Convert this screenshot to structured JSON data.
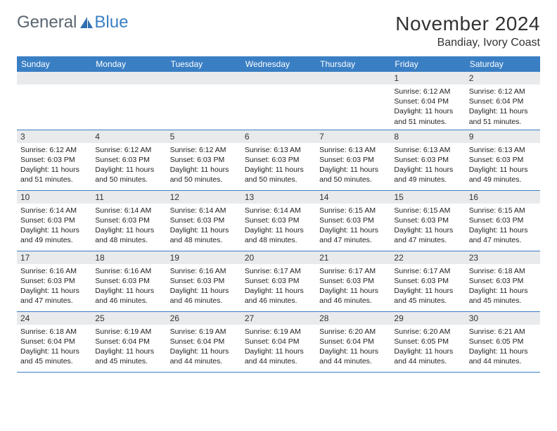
{
  "logo": {
    "word1": "General",
    "word2": "Blue"
  },
  "title": "November 2024",
  "location": "Bandiay, Ivory Coast",
  "columns": [
    "Sunday",
    "Monday",
    "Tuesday",
    "Wednesday",
    "Thursday",
    "Friday",
    "Saturday"
  ],
  "colors": {
    "header_bg": "#3a7fc4",
    "header_text": "#ffffff",
    "bar_bg": "#e8eaec",
    "border": "#3a7fc4",
    "body_text": "#222",
    "logo_gray": "#5a6570",
    "logo_blue": "#3a7fc4"
  },
  "weeks": [
    [
      null,
      null,
      null,
      null,
      null,
      {
        "n": "1",
        "sr": "6:12 AM",
        "ss": "6:04 PM",
        "dl": "11 hours and 51 minutes."
      },
      {
        "n": "2",
        "sr": "6:12 AM",
        "ss": "6:04 PM",
        "dl": "11 hours and 51 minutes."
      }
    ],
    [
      {
        "n": "3",
        "sr": "6:12 AM",
        "ss": "6:03 PM",
        "dl": "11 hours and 51 minutes."
      },
      {
        "n": "4",
        "sr": "6:12 AM",
        "ss": "6:03 PM",
        "dl": "11 hours and 50 minutes."
      },
      {
        "n": "5",
        "sr": "6:12 AM",
        "ss": "6:03 PM",
        "dl": "11 hours and 50 minutes."
      },
      {
        "n": "6",
        "sr": "6:13 AM",
        "ss": "6:03 PM",
        "dl": "11 hours and 50 minutes."
      },
      {
        "n": "7",
        "sr": "6:13 AM",
        "ss": "6:03 PM",
        "dl": "11 hours and 50 minutes."
      },
      {
        "n": "8",
        "sr": "6:13 AM",
        "ss": "6:03 PM",
        "dl": "11 hours and 49 minutes."
      },
      {
        "n": "9",
        "sr": "6:13 AM",
        "ss": "6:03 PM",
        "dl": "11 hours and 49 minutes."
      }
    ],
    [
      {
        "n": "10",
        "sr": "6:14 AM",
        "ss": "6:03 PM",
        "dl": "11 hours and 49 minutes."
      },
      {
        "n": "11",
        "sr": "6:14 AM",
        "ss": "6:03 PM",
        "dl": "11 hours and 48 minutes."
      },
      {
        "n": "12",
        "sr": "6:14 AM",
        "ss": "6:03 PM",
        "dl": "11 hours and 48 minutes."
      },
      {
        "n": "13",
        "sr": "6:14 AM",
        "ss": "6:03 PM",
        "dl": "11 hours and 48 minutes."
      },
      {
        "n": "14",
        "sr": "6:15 AM",
        "ss": "6:03 PM",
        "dl": "11 hours and 47 minutes."
      },
      {
        "n": "15",
        "sr": "6:15 AM",
        "ss": "6:03 PM",
        "dl": "11 hours and 47 minutes."
      },
      {
        "n": "16",
        "sr": "6:15 AM",
        "ss": "6:03 PM",
        "dl": "11 hours and 47 minutes."
      }
    ],
    [
      {
        "n": "17",
        "sr": "6:16 AM",
        "ss": "6:03 PM",
        "dl": "11 hours and 47 minutes."
      },
      {
        "n": "18",
        "sr": "6:16 AM",
        "ss": "6:03 PM",
        "dl": "11 hours and 46 minutes."
      },
      {
        "n": "19",
        "sr": "6:16 AM",
        "ss": "6:03 PM",
        "dl": "11 hours and 46 minutes."
      },
      {
        "n": "20",
        "sr": "6:17 AM",
        "ss": "6:03 PM",
        "dl": "11 hours and 46 minutes."
      },
      {
        "n": "21",
        "sr": "6:17 AM",
        "ss": "6:03 PM",
        "dl": "11 hours and 46 minutes."
      },
      {
        "n": "22",
        "sr": "6:17 AM",
        "ss": "6:03 PM",
        "dl": "11 hours and 45 minutes."
      },
      {
        "n": "23",
        "sr": "6:18 AM",
        "ss": "6:03 PM",
        "dl": "11 hours and 45 minutes."
      }
    ],
    [
      {
        "n": "24",
        "sr": "6:18 AM",
        "ss": "6:04 PM",
        "dl": "11 hours and 45 minutes."
      },
      {
        "n": "25",
        "sr": "6:19 AM",
        "ss": "6:04 PM",
        "dl": "11 hours and 45 minutes."
      },
      {
        "n": "26",
        "sr": "6:19 AM",
        "ss": "6:04 PM",
        "dl": "11 hours and 44 minutes."
      },
      {
        "n": "27",
        "sr": "6:19 AM",
        "ss": "6:04 PM",
        "dl": "11 hours and 44 minutes."
      },
      {
        "n": "28",
        "sr": "6:20 AM",
        "ss": "6:04 PM",
        "dl": "11 hours and 44 minutes."
      },
      {
        "n": "29",
        "sr": "6:20 AM",
        "ss": "6:05 PM",
        "dl": "11 hours and 44 minutes."
      },
      {
        "n": "30",
        "sr": "6:21 AM",
        "ss": "6:05 PM",
        "dl": "11 hours and 44 minutes."
      }
    ]
  ],
  "labels": {
    "sunrise": "Sunrise:",
    "sunset": "Sunset:",
    "daylight": "Daylight:"
  }
}
